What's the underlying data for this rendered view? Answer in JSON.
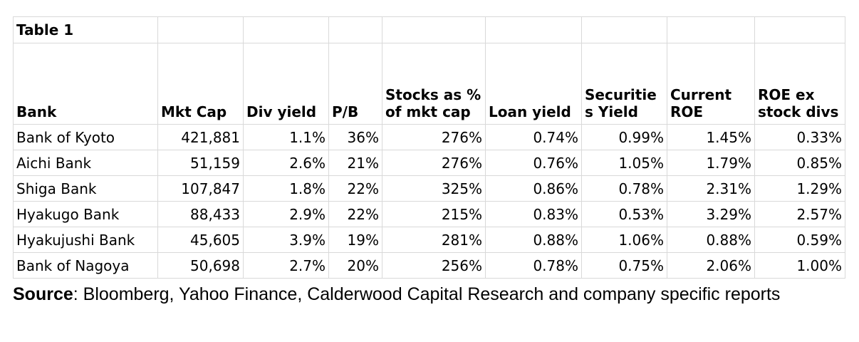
{
  "table": {
    "title": "Table 1",
    "headers": [
      "Bank",
      "Mkt Cap",
      "Div yield",
      "P/B",
      "Stocks as %\nof mkt cap",
      "Loan yield",
      "Securitie\ns Yield",
      "Current\nROE",
      "ROE ex\nstock divs"
    ],
    "rows": [
      [
        "Bank of Kyoto",
        "421,881",
        "1.1%",
        "36%",
        "276%",
        "0.74%",
        "0.99%",
        "1.45%",
        "0.33%"
      ],
      [
        "Aichi Bank",
        "51,159",
        "2.6%",
        "21%",
        "276%",
        "0.76%",
        "1.05%",
        "1.79%",
        "0.85%"
      ],
      [
        "Shiga Bank",
        "107,847",
        "1.8%",
        "22%",
        "325%",
        "0.86%",
        "0.78%",
        "2.31%",
        "1.29%"
      ],
      [
        "Hyakugo Bank",
        "88,433",
        "2.9%",
        "22%",
        "215%",
        "0.83%",
        "0.53%",
        "3.29%",
        "2.57%"
      ],
      [
        "Hyakujushi Bank",
        "45,605",
        "3.9%",
        "19%",
        "281%",
        "0.88%",
        "1.06%",
        "0.88%",
        "0.59%"
      ],
      [
        "Bank of Nagoya",
        "50,698",
        "2.7%",
        "20%",
        "256%",
        "0.78%",
        "0.75%",
        "2.06%",
        "1.00%"
      ]
    ]
  },
  "source": {
    "label": "Source",
    "text": ": Bloomberg, Yahoo Finance, Calderwood Capital Research and company specific reports"
  },
  "colors": {
    "gridline": "#d9d9d9",
    "text": "#000000",
    "background": "#ffffff"
  }
}
